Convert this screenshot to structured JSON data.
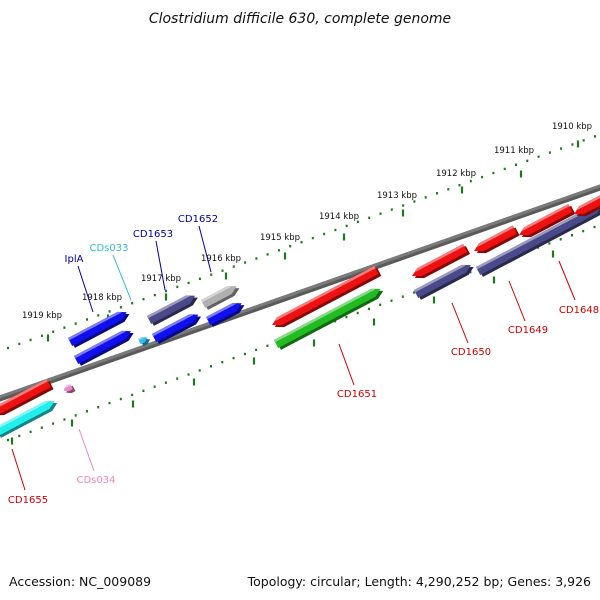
{
  "title": "Clostridium difficile 630, complete genome",
  "footer": {
    "accession": "Accession: NC_009089",
    "summary": "Topology: circular; Length: 4,290,252 bp; Genes: 3,926"
  },
  "colors": {
    "backbone": "#7a7a7a",
    "tick": "#1a7a1a",
    "red": "#ee1111",
    "blue": "#1010ee",
    "navy": "#4a4a8a",
    "gray": "#b0b0b0",
    "green": "#22bb22",
    "cyan": "#22eeee",
    "skyblue": "#33bbee",
    "pink": "#ee88cc",
    "labelRed": "#cc0000",
    "labelBlue": "#000099",
    "labelSky": "#33bbdd",
    "labelPink": "#ee88bb"
  },
  "ticks": [
    {
      "label": "1910 kbp"
    },
    {
      "label": "1911 kbp"
    },
    {
      "label": "1912 kbp"
    },
    {
      "label": "1913 kbp"
    },
    {
      "label": "1914 kbp"
    },
    {
      "label": "1915 kbp"
    },
    {
      "label": "1916 kbp"
    },
    {
      "label": "1917 kbp"
    },
    {
      "label": "1918 kbp"
    },
    {
      "label": "1919 kbp"
    }
  ],
  "genes": [
    {
      "label": "IplA",
      "color": "blue",
      "labelColor": "labelBlue"
    },
    {
      "label": "CDs033",
      "color": "skyblue",
      "labelColor": "labelSky"
    },
    {
      "label": "CD1653",
      "color": "navy",
      "labelColor": "labelBlue"
    },
    {
      "label": "CD1652",
      "color": "blue",
      "labelColor": "labelBlue"
    },
    {
      "label": "CD1651",
      "color": "green",
      "labelColor": "labelRed"
    },
    {
      "label": "CD1650",
      "color": "navy",
      "labelColor": "labelRed"
    },
    {
      "label": "CD1649",
      "color": "red",
      "labelColor": "labelRed"
    },
    {
      "label": "CD1648",
      "color": "red",
      "labelColor": "labelRed"
    },
    {
      "label": "CD1655",
      "color": "red",
      "labelColor": "labelRed"
    },
    {
      "label": "CDs034",
      "color": "pink",
      "labelColor": "labelPink"
    }
  ]
}
